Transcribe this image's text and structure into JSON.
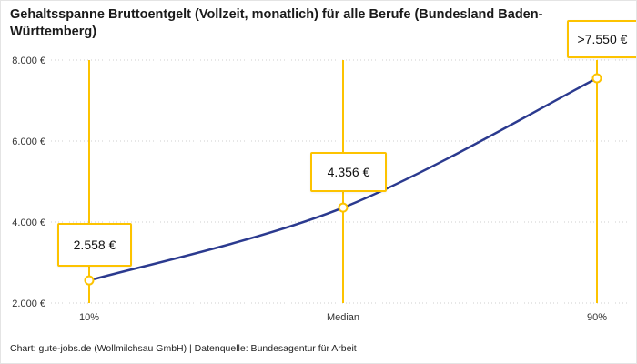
{
  "title": "Gehaltsspanne Bruttoentgelt (Vollzeit, monatlich) für alle Berufe (Bundesland Baden-Württemberg)",
  "footer": "Chart: gute-jobs.de (Wollmilchsau GmbH) | Datenquelle: Bundesagentur für Arbeit",
  "colors": {
    "accent": "#FDC300",
    "line": "#2B3A8F",
    "grid": "#cfcfcf",
    "text": "#1a1a1a"
  },
  "chart_data": {
    "type": "line",
    "title": "Gehaltsspanne Bruttoentgelt (Vollzeit, monatlich) für alle Berufe (Bundesland Baden-Württemberg)",
    "categories": [
      "10%",
      "Median",
      "90%"
    ],
    "values": [
      2558,
      4356,
      7550
    ],
    "point_labels": [
      "2.558 €",
      "4.356 €",
      ">7.550 €"
    ],
    "ylim": [
      2000,
      8000
    ],
    "yticks": [
      2000,
      4000,
      6000,
      8000
    ],
    "ytick_labels": [
      "2.000 €",
      "4.000 €",
      "6.000 €",
      "8.000 €"
    ],
    "xlabel": "",
    "ylabel": "",
    "grid": true,
    "legend": false,
    "source": "Datenquelle: Bundesagentur für Arbeit"
  }
}
